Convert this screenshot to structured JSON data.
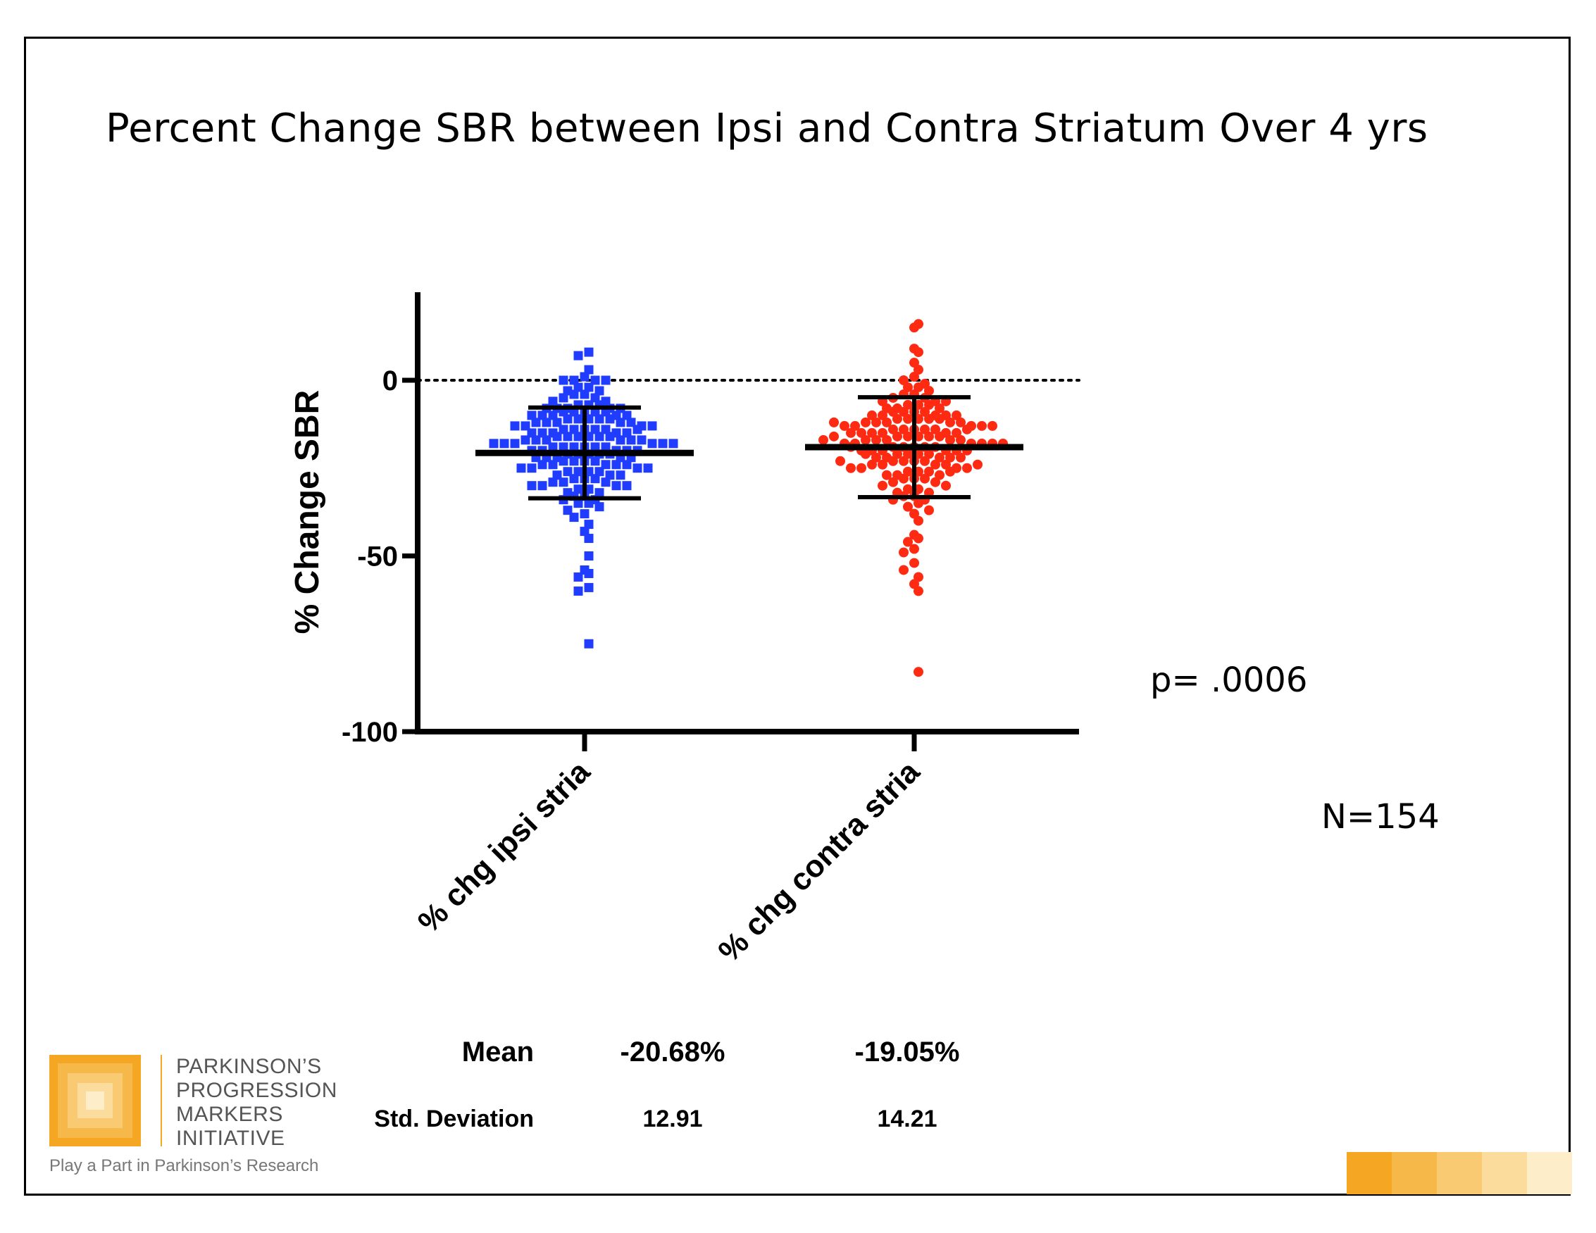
{
  "slide": {
    "title": "Percent Change SBR between Ipsi and Contra Striatum Over 4 yrs",
    "p_value": "p= .0006",
    "n_count": "N=154"
  },
  "stats": {
    "mean_label": "Mean",
    "std_label": "Std. Deviation",
    "ipsi_mean": "-20.68%",
    "contra_mean": "-19.05%",
    "ipsi_std": "12.91",
    "contra_std": "14.21"
  },
  "logo": {
    "line1": "PARKINSON’S",
    "line2": "PROGRESSION",
    "line3": "MARKERS",
    "line4": "INITIATIVE",
    "tagline": "Play a Part in Parkinson’s Research",
    "colors": [
      "#f5a623",
      "#f7b84a",
      "#f9ca72",
      "#fbdc9c",
      "#fdeec9"
    ]
  },
  "chart_data": {
    "type": "scatter",
    "title": "",
    "ylabel": "% Change SBR",
    "xlabel": "",
    "ylim": [
      -100,
      25
    ],
    "yticks": [
      0,
      -50,
      -100
    ],
    "ytick_labels": [
      "0",
      "-50",
      "-100"
    ],
    "categories": [
      "% chg ipsi stria",
      "% chg contra stria"
    ],
    "reference_line": 0,
    "series": [
      {
        "name": "% chg ipsi stria",
        "color": "#1f3cff",
        "marker": "square",
        "mean": -20.68,
        "sd": 12.91,
        "values": [
          8,
          7,
          3,
          1,
          0,
          0,
          0,
          0,
          -2,
          -2,
          -3,
          -3,
          -4,
          -4,
          -5,
          -5,
          -6,
          -6,
          -7,
          -7,
          -7,
          -8,
          -8,
          -8,
          -8,
          -8,
          -9,
          -9,
          -9,
          -9,
          -9,
          -10,
          -10,
          -10,
          -10,
          -10,
          -11,
          -11,
          -11,
          -11,
          -11,
          -12,
          -12,
          -12,
          -12,
          -12,
          -13,
          -13,
          -13,
          -13,
          -14,
          -14,
          -14,
          -14,
          -14,
          -15,
          -15,
          -15,
          -15,
          -15,
          -16,
          -16,
          -16,
          -16,
          -16,
          -16,
          -17,
          -17,
          -17,
          -17,
          -17,
          -17,
          -18,
          -18,
          -18,
          -18,
          -18,
          -18,
          -19,
          -19,
          -19,
          -19,
          -19,
          -19,
          -20,
          -20,
          -20,
          -20,
          -20,
          -21,
          -21,
          -21,
          -21,
          -21,
          -22,
          -22,
          -22,
          -22,
          -22,
          -23,
          -23,
          -23,
          -23,
          -24,
          -24,
          -24,
          -24,
          -24,
          -25,
          -25,
          -25,
          -25,
          -26,
          -26,
          -26,
          -26,
          -27,
          -27,
          -27,
          -28,
          -28,
          -28,
          -29,
          -29,
          -29,
          -30,
          -30,
          -30,
          -31,
          -31,
          -32,
          -32,
          -33,
          -33,
          -34,
          -34,
          -35,
          -35,
          -36,
          -37,
          -38,
          -39,
          -41,
          -43,
          -45,
          -50,
          -54,
          -55,
          -56,
          -59,
          -60,
          -75,
          -30,
          -14
        ]
      },
      {
        "name": "% chg contra stria",
        "color": "#ff2a12",
        "marker": "circle",
        "mean": -19.05,
        "sd": 14.21,
        "values": [
          16,
          15,
          9,
          8,
          5,
          3,
          1,
          0,
          -1,
          -2,
          -2,
          -3,
          -4,
          -4,
          -5,
          -5,
          -6,
          -6,
          -6,
          -7,
          -7,
          -7,
          -8,
          -8,
          -8,
          -9,
          -9,
          -9,
          -9,
          -10,
          -10,
          -10,
          -10,
          -11,
          -11,
          -11,
          -11,
          -11,
          -12,
          -12,
          -12,
          -12,
          -12,
          -13,
          -13,
          -13,
          -13,
          -13,
          -14,
          -14,
          -14,
          -14,
          -14,
          -15,
          -15,
          -15,
          -15,
          -15,
          -16,
          -16,
          -16,
          -16,
          -16,
          -17,
          -17,
          -17,
          -17,
          -17,
          -18,
          -18,
          -18,
          -18,
          -18,
          -19,
          -19,
          -19,
          -19,
          -19,
          -20,
          -20,
          -20,
          -20,
          -20,
          -21,
          -21,
          -21,
          -21,
          -22,
          -22,
          -22,
          -22,
          -23,
          -23,
          -23,
          -23,
          -24,
          -24,
          -24,
          -24,
          -25,
          -25,
          -25,
          -25,
          -26,
          -26,
          -26,
          -27,
          -27,
          -27,
          -28,
          -28,
          -28,
          -29,
          -29,
          -30,
          -30,
          -31,
          -31,
          -32,
          -32,
          -33,
          -33,
          -34,
          -34,
          -35,
          -36,
          -37,
          -38,
          -40,
          -44,
          -45,
          -46,
          -48,
          -49,
          -52,
          -54,
          -56,
          -58,
          -60,
          -83,
          -12,
          -16,
          -18,
          -20,
          -22,
          -24,
          -26,
          -14,
          -10,
          -21,
          -19,
          -17,
          -15,
          -23
        ]
      }
    ]
  }
}
